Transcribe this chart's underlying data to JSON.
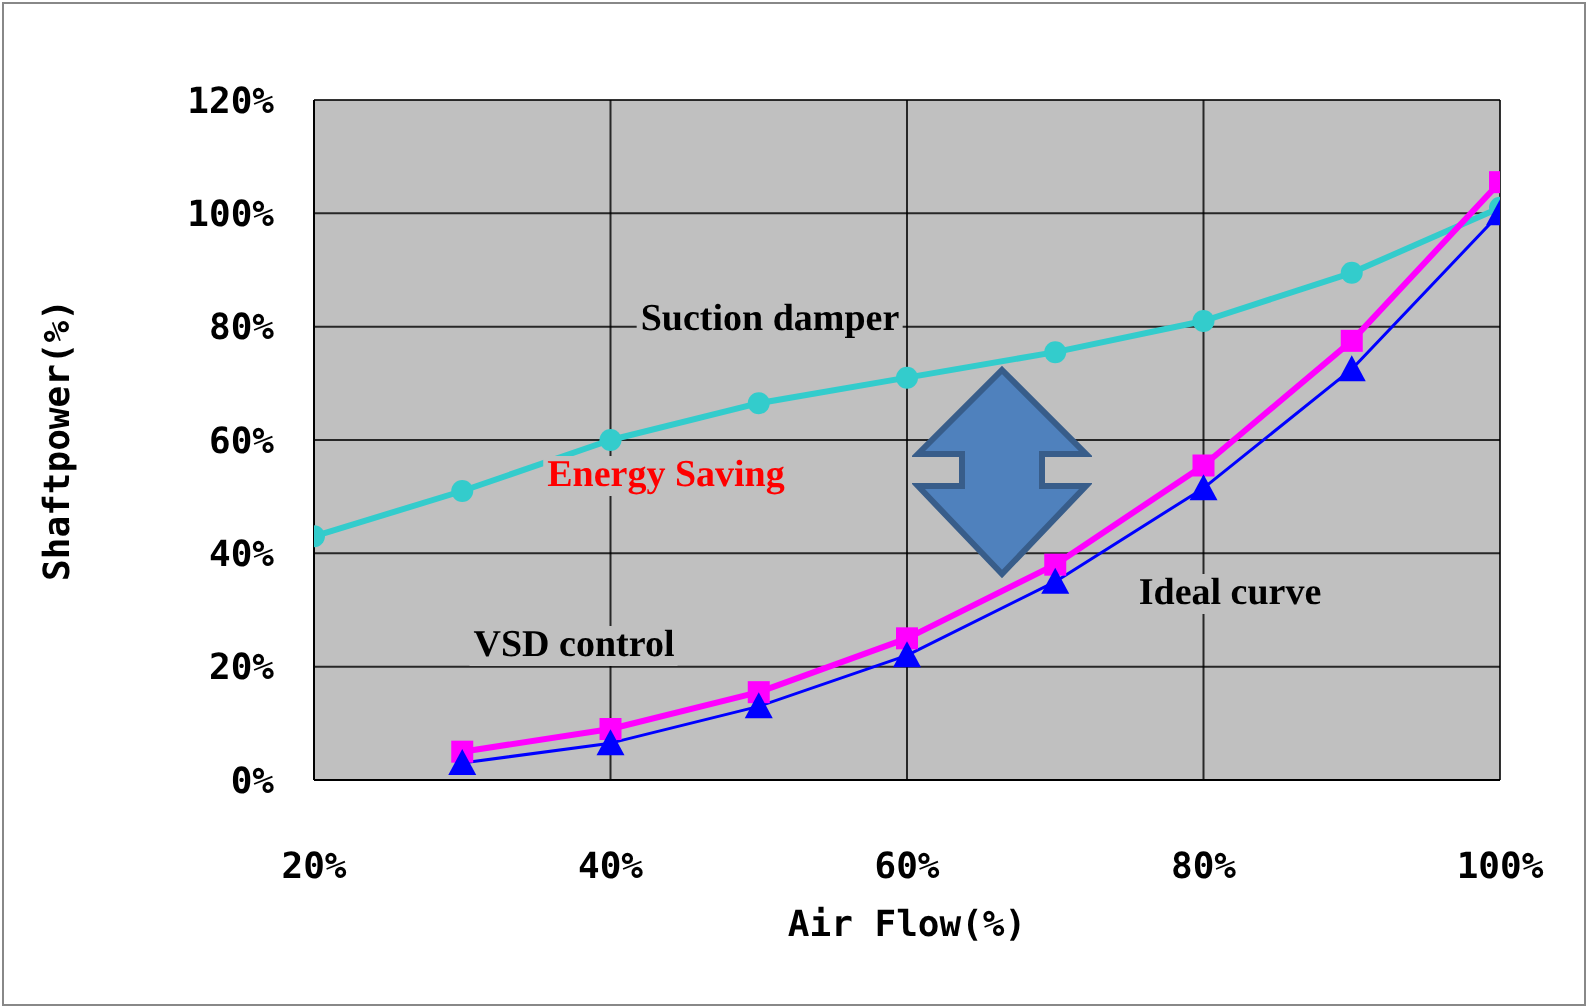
{
  "chart_data": {
    "type": "line",
    "xlabel": "Air Flow(%)",
    "ylabel": "Shaftpower(%)",
    "xlim": [
      20,
      100
    ],
    "xticks": [
      {
        "value": 20,
        "label": "20%"
      },
      {
        "value": 40,
        "label": "40%"
      },
      {
        "value": 60,
        "label": "60%"
      },
      {
        "value": 80,
        "label": "80%"
      },
      {
        "value": 100,
        "label": "100%"
      }
    ],
    "ylim": [
      0,
      120
    ],
    "yticks": [
      {
        "value": 0,
        "label": "0%"
      },
      {
        "value": 20,
        "label": "20%"
      },
      {
        "value": 40,
        "label": "40%"
      },
      {
        "value": 60,
        "label": "60%"
      },
      {
        "value": 80,
        "label": "80%"
      },
      {
        "value": 100,
        "label": "100%"
      },
      {
        "value": 120,
        "label": "120%"
      }
    ],
    "grid": true,
    "series": [
      {
        "name": "Suction damper",
        "color": "#33cccc",
        "marker": "circle",
        "x": [
          20,
          30,
          40,
          50,
          60,
          70,
          80,
          90,
          100
        ],
        "values": [
          43,
          51,
          60,
          66.5,
          71,
          75.5,
          81,
          89.5,
          101
        ]
      },
      {
        "name": "VSD control",
        "color": "#ff00ff",
        "marker": "square",
        "x": [
          30,
          40,
          50,
          60,
          70,
          80,
          90,
          100
        ],
        "values": [
          5,
          9,
          15.5,
          25,
          38,
          55.5,
          77.5,
          105.5
        ]
      },
      {
        "name": "Ideal curve",
        "color": "#0000ff",
        "marker": "triangle",
        "x": [
          30,
          40,
          50,
          60,
          70,
          80,
          90,
          100
        ],
        "values": [
          3,
          6.5,
          13,
          22,
          35,
          51.5,
          72.5,
          100
        ]
      }
    ],
    "annotations": [
      "Energy Saving"
    ]
  }
}
